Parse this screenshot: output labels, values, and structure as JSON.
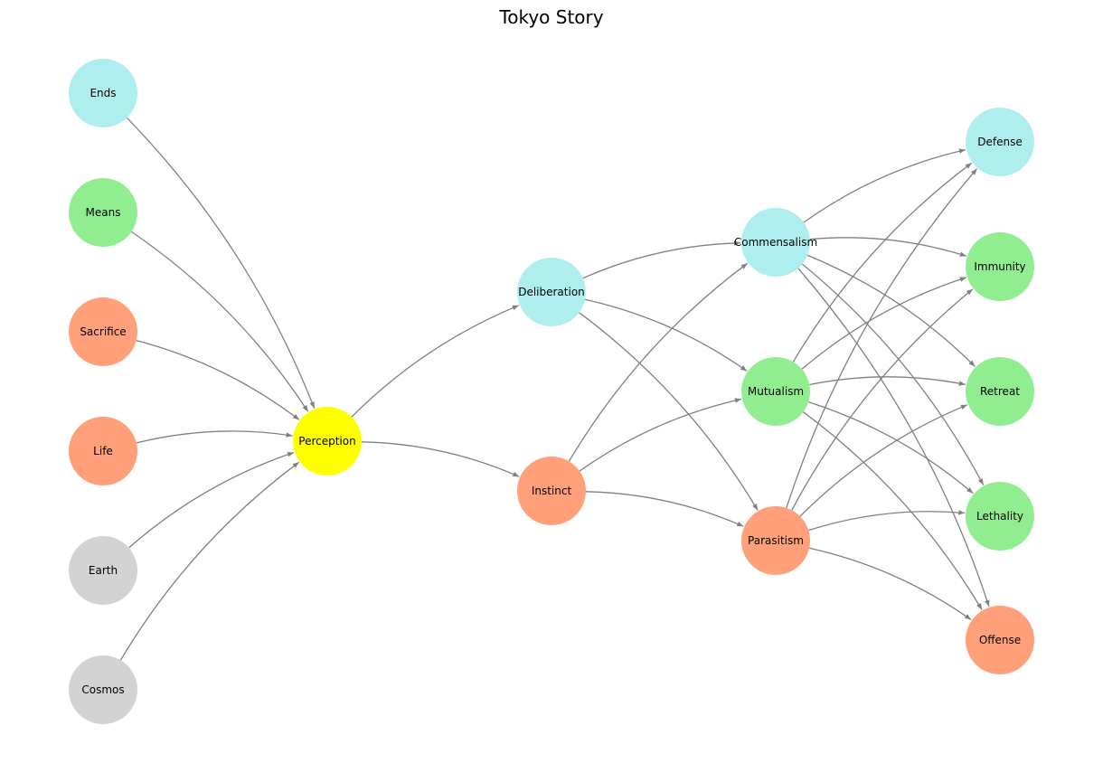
{
  "title": "Tokyo Story",
  "colors": {
    "gray": "#d3d3d3",
    "green": "#90ee90",
    "salmon": "#ffa07a",
    "cyan": "#afeeee",
    "yellow": "#ffff00",
    "edge": "#808080"
  },
  "nodes": [
    {
      "id": "ends",
      "label": "Ends",
      "color": "cyan"
    },
    {
      "id": "means",
      "label": "Means",
      "color": "green"
    },
    {
      "id": "sacrifice",
      "label": "Sacrifice",
      "color": "salmon"
    },
    {
      "id": "life",
      "label": "Life",
      "color": "salmon"
    },
    {
      "id": "earth",
      "label": "Earth",
      "color": "gray"
    },
    {
      "id": "cosmos",
      "label": "Cosmos",
      "color": "gray"
    },
    {
      "id": "perception",
      "label": "Perception",
      "color": "yellow"
    },
    {
      "id": "deliberation",
      "label": "Deliberation",
      "color": "cyan"
    },
    {
      "id": "instinct",
      "label": "Instinct",
      "color": "salmon"
    },
    {
      "id": "commensalism",
      "label": "Commensalism",
      "color": "cyan"
    },
    {
      "id": "mutualism",
      "label": "Mutualism",
      "color": "green"
    },
    {
      "id": "parasitism",
      "label": "Parasitism",
      "color": "salmon"
    },
    {
      "id": "defense",
      "label": "Defense",
      "color": "cyan"
    },
    {
      "id": "immunity",
      "label": "Immunity",
      "color": "green"
    },
    {
      "id": "retreat",
      "label": "Retreat",
      "color": "green"
    },
    {
      "id": "lethality",
      "label": "Lethality",
      "color": "green"
    },
    {
      "id": "offense",
      "label": "Offense",
      "color": "salmon"
    }
  ],
  "edges": [
    [
      "ends",
      "perception"
    ],
    [
      "means",
      "perception"
    ],
    [
      "sacrifice",
      "perception"
    ],
    [
      "life",
      "perception"
    ],
    [
      "earth",
      "perception"
    ],
    [
      "cosmos",
      "perception"
    ],
    [
      "perception",
      "deliberation"
    ],
    [
      "perception",
      "instinct"
    ],
    [
      "deliberation",
      "commensalism"
    ],
    [
      "deliberation",
      "mutualism"
    ],
    [
      "deliberation",
      "parasitism"
    ],
    [
      "instinct",
      "commensalism"
    ],
    [
      "instinct",
      "mutualism"
    ],
    [
      "instinct",
      "parasitism"
    ],
    [
      "commensalism",
      "defense"
    ],
    [
      "commensalism",
      "immunity"
    ],
    [
      "commensalism",
      "retreat"
    ],
    [
      "commensalism",
      "lethality"
    ],
    [
      "commensalism",
      "offense"
    ],
    [
      "mutualism",
      "defense"
    ],
    [
      "mutualism",
      "immunity"
    ],
    [
      "mutualism",
      "retreat"
    ],
    [
      "mutualism",
      "lethality"
    ],
    [
      "mutualism",
      "offense"
    ],
    [
      "parasitism",
      "defense"
    ],
    [
      "parasitism",
      "immunity"
    ],
    [
      "parasitism",
      "retreat"
    ],
    [
      "parasitism",
      "lethality"
    ],
    [
      "parasitism",
      "offense"
    ]
  ]
}
